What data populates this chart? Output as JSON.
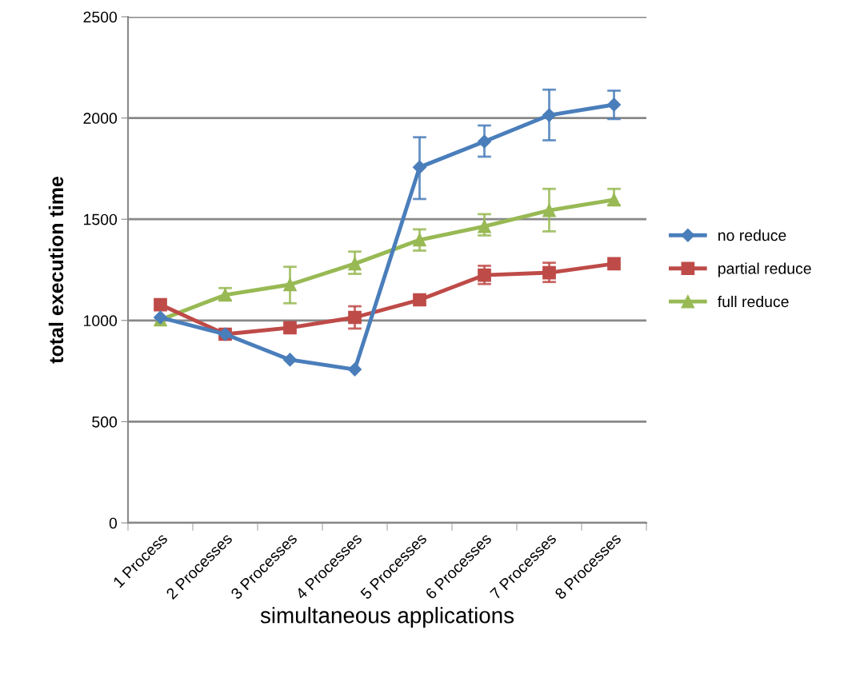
{
  "chart_data": {
    "type": "line",
    "xlabel": "simultaneous applications",
    "ylabel": "total execution time",
    "categories": [
      "1 Process",
      "2 Processes",
      "3 Processes",
      "4 Processes",
      "5 Processes",
      "6 Processes",
      "7 Processes",
      "8 Processes"
    ],
    "series": [
      {
        "name": "no reduce",
        "color": "#4a7ebb",
        "marker": "diamond",
        "values": [
          1015,
          932,
          806,
          758,
          1757,
          1884,
          2014,
          2066
        ],
        "errors": [
          null,
          null,
          null,
          null,
          [
            1600,
            1905
          ],
          [
            1809,
            1963
          ],
          [
            1890,
            2140
          ],
          [
            1995,
            2135
          ]
        ]
      },
      {
        "name": "partial reduce",
        "color": "#be4b48",
        "marker": "square",
        "values": [
          1078,
          932,
          964,
          1015,
          1102,
          1224,
          1236,
          1280
        ],
        "errors": [
          null,
          null,
          null,
          [
            960,
            1070
          ],
          null,
          [
            1180,
            1270
          ],
          [
            1190,
            1285
          ],
          null
        ]
      },
      {
        "name": "full reduce",
        "color": "#98b954",
        "marker": "triangle",
        "values": [
          1003,
          1126,
          1177,
          1280,
          1398,
          1465,
          1544,
          1596
        ],
        "errors": [
          null,
          [
            1100,
            1160
          ],
          [
            1085,
            1265
          ],
          [
            1230,
            1340
          ],
          [
            1345,
            1450
          ],
          [
            1420,
            1525
          ],
          [
            1440,
            1650
          ],
          [
            1570,
            1650
          ]
        ]
      }
    ],
    "ylim": [
      0,
      2500
    ],
    "yticks": [
      0,
      500,
      1000,
      1500,
      2000,
      2500
    ],
    "grid": "y",
    "legend": "right",
    "line_style": "solid"
  }
}
